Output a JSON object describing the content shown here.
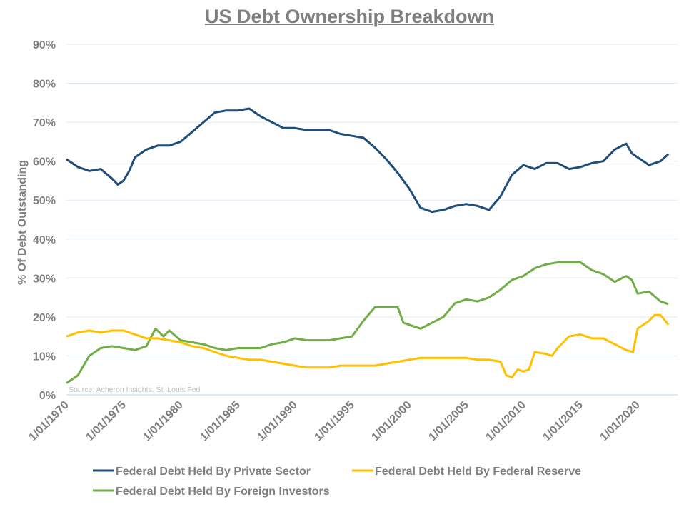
{
  "chart_data": {
    "type": "line",
    "title": "US Debt Ownership Breakdown",
    "xlabel": "",
    "ylabel": "% Of Debt Outstanding",
    "source": "Source: Acheron Insights, St. Louis Fed",
    "ylim": [
      0,
      90
    ],
    "yticks": [
      "0%",
      "10%",
      "20%",
      "30%",
      "40%",
      "50%",
      "60%",
      "70%",
      "80%",
      "90%"
    ],
    "xlim": [
      1970,
      2023
    ],
    "xticks": [
      "1/01/1970",
      "1/01/1975",
      "1/01/1980",
      "1/01/1985",
      "1/01/1990",
      "1/01/1995",
      "1/01/2000",
      "1/01/2005",
      "1/01/2010",
      "1/01/2015",
      "1/01/2020"
    ],
    "grid": true,
    "legend": "bottom",
    "series": [
      {
        "name": "Federal Debt Held By Private Sector",
        "color": "#1f4e79",
        "x": [
          1970,
          1971,
          1972,
          1973,
          1974,
          1974.5,
          1975,
          1975.5,
          1976,
          1977,
          1978,
          1979,
          1980,
          1981,
          1982,
          1983,
          1984,
          1985,
          1986,
          1987,
          1988,
          1989,
          1990,
          1991,
          1992,
          1993,
          1994,
          1995,
          1996,
          1997,
          1998,
          1999,
          2000,
          2001,
          2002,
          2003,
          2004,
          2005,
          2006,
          2007,
          2008,
          2009,
          2010,
          2011,
          2012,
          2013,
          2014,
          2015,
          2016,
          2017,
          2018,
          2019,
          2019.5,
          2020,
          2021,
          2022,
          2022.7
        ],
        "y": [
          60.5,
          58.5,
          57.5,
          58,
          55.5,
          54,
          55,
          57.5,
          61,
          63,
          64,
          64,
          65,
          67.5,
          70,
          72.5,
          73,
          73,
          73.5,
          71.5,
          70,
          68.5,
          68.5,
          68,
          68,
          68,
          67,
          66.5,
          66,
          63.5,
          60.5,
          57,
          53,
          48,
          47,
          47.5,
          48.5,
          49,
          48.5,
          47.5,
          51,
          56.5,
          59,
          58,
          59.5,
          59.5,
          58,
          58.5,
          59.5,
          60,
          63,
          64.5,
          62,
          61,
          59,
          60,
          61.8
        ]
      },
      {
        "name": "Federal Debt Held By Federal Reserve",
        "color": "#ffc000",
        "x": [
          1970,
          1971,
          1972,
          1973,
          1974,
          1975,
          1976,
          1977,
          1978,
          1979,
          1980,
          1981,
          1982,
          1983,
          1984,
          1985,
          1986,
          1987,
          1988,
          1989,
          1990,
          1991,
          1992,
          1993,
          1994,
          1995,
          1996,
          1997,
          1998,
          1999,
          2000,
          2001,
          2002,
          2003,
          2004,
          2005,
          2006,
          2007,
          2008,
          2008.5,
          2009,
          2009.5,
          2010,
          2010.5,
          2011,
          2012,
          2012.5,
          2013,
          2014,
          2015,
          2016,
          2017,
          2018,
          2019,
          2019.6,
          2020,
          2021,
          2021.5,
          2022,
          2022.7
        ],
        "y": [
          15,
          16,
          16.5,
          16,
          16.5,
          16.5,
          15.5,
          14.5,
          14.5,
          14,
          13.5,
          12.5,
          12,
          11,
          10,
          9.5,
          9,
          9,
          8.5,
          8,
          7.5,
          7,
          7,
          7,
          7.5,
          7.5,
          7.5,
          7.5,
          8,
          8.5,
          9,
          9.5,
          9.5,
          9.5,
          9.5,
          9.5,
          9,
          9,
          8.5,
          5,
          4.5,
          6.5,
          6,
          6.5,
          11,
          10.5,
          10,
          12,
          15,
          15.5,
          14.5,
          14.5,
          13,
          11.5,
          11,
          17,
          19,
          20.5,
          20.5,
          18
        ]
      },
      {
        "name": "Federal Debt Held By Foreign Investors",
        "color": "#70ad47",
        "x": [
          1970,
          1971,
          1972,
          1973,
          1974,
          1975,
          1976,
          1977,
          1977.8,
          1978.5,
          1979,
          1980,
          1981,
          1982,
          1983,
          1984,
          1985,
          1986,
          1987,
          1988,
          1989,
          1990,
          1991,
          1992,
          1993,
          1994,
          1995,
          1996,
          1997,
          1998,
          1999,
          1999.5,
          2000,
          2001,
          2002,
          2003,
          2004,
          2005,
          2006,
          2007,
          2008,
          2009,
          2010,
          2011,
          2012,
          2013,
          2014,
          2015,
          2016,
          2017,
          2018,
          2019,
          2019.5,
          2020,
          2021,
          2022,
          2022.7
        ],
        "y": [
          3,
          5,
          10,
          12,
          12.5,
          12,
          11.5,
          12.5,
          17,
          15,
          16.5,
          14,
          13.5,
          13,
          12,
          11.5,
          12,
          12,
          12,
          13,
          13.5,
          14.5,
          14,
          14,
          14,
          14.5,
          15,
          19,
          22.5,
          22.5,
          22.5,
          18.5,
          18,
          17,
          18.5,
          20,
          23.5,
          24.5,
          24,
          25,
          27,
          29.5,
          30.5,
          32.5,
          33.5,
          34,
          34,
          34,
          32,
          31,
          29,
          30.5,
          29.5,
          26,
          26.5,
          24,
          23.3
        ]
      }
    ]
  }
}
